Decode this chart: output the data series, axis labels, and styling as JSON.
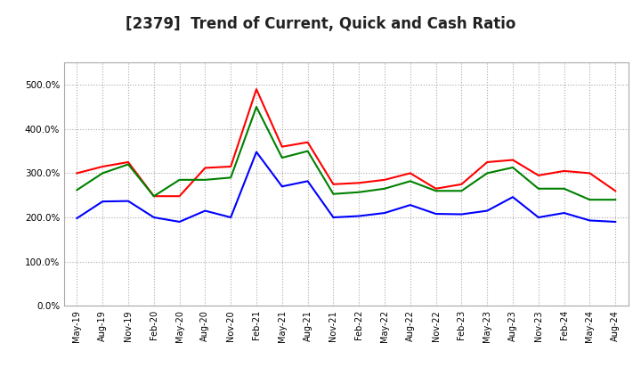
{
  "title": "[2379]  Trend of Current, Quick and Cash Ratio",
  "x_labels": [
    "May-19",
    "Aug-19",
    "Nov-19",
    "Feb-20",
    "May-20",
    "Aug-20",
    "Nov-20",
    "Feb-21",
    "May-21",
    "Aug-21",
    "Nov-21",
    "Feb-22",
    "May-22",
    "Aug-22",
    "Nov-22",
    "Feb-23",
    "May-23",
    "Aug-23",
    "Nov-23",
    "Feb-24",
    "May-24",
    "Aug-24"
  ],
  "current_ratio": [
    300,
    315,
    325,
    248,
    248,
    312,
    315,
    490,
    360,
    370,
    275,
    278,
    285,
    300,
    265,
    275,
    325,
    330,
    295,
    305,
    300,
    260
  ],
  "quick_ratio": [
    262,
    300,
    320,
    248,
    285,
    285,
    290,
    450,
    335,
    350,
    253,
    257,
    265,
    282,
    260,
    260,
    300,
    313,
    265,
    265,
    240,
    240
  ],
  "cash_ratio": [
    198,
    236,
    237,
    200,
    190,
    215,
    200,
    348,
    270,
    282,
    200,
    203,
    210,
    228,
    208,
    207,
    215,
    246,
    200,
    210,
    193,
    190
  ],
  "current_color": "#ff0000",
  "quick_color": "#008000",
  "cash_color": "#0000ff",
  "ylim": [
    0,
    550
  ],
  "yticks": [
    0,
    100,
    200,
    300,
    400,
    500
  ],
  "background_color": "#ffffff",
  "plot_bg_color": "#ffffff",
  "grid_color": "#aaaaaa",
  "title_fontsize": 12,
  "legend_fontsize": 9.5
}
